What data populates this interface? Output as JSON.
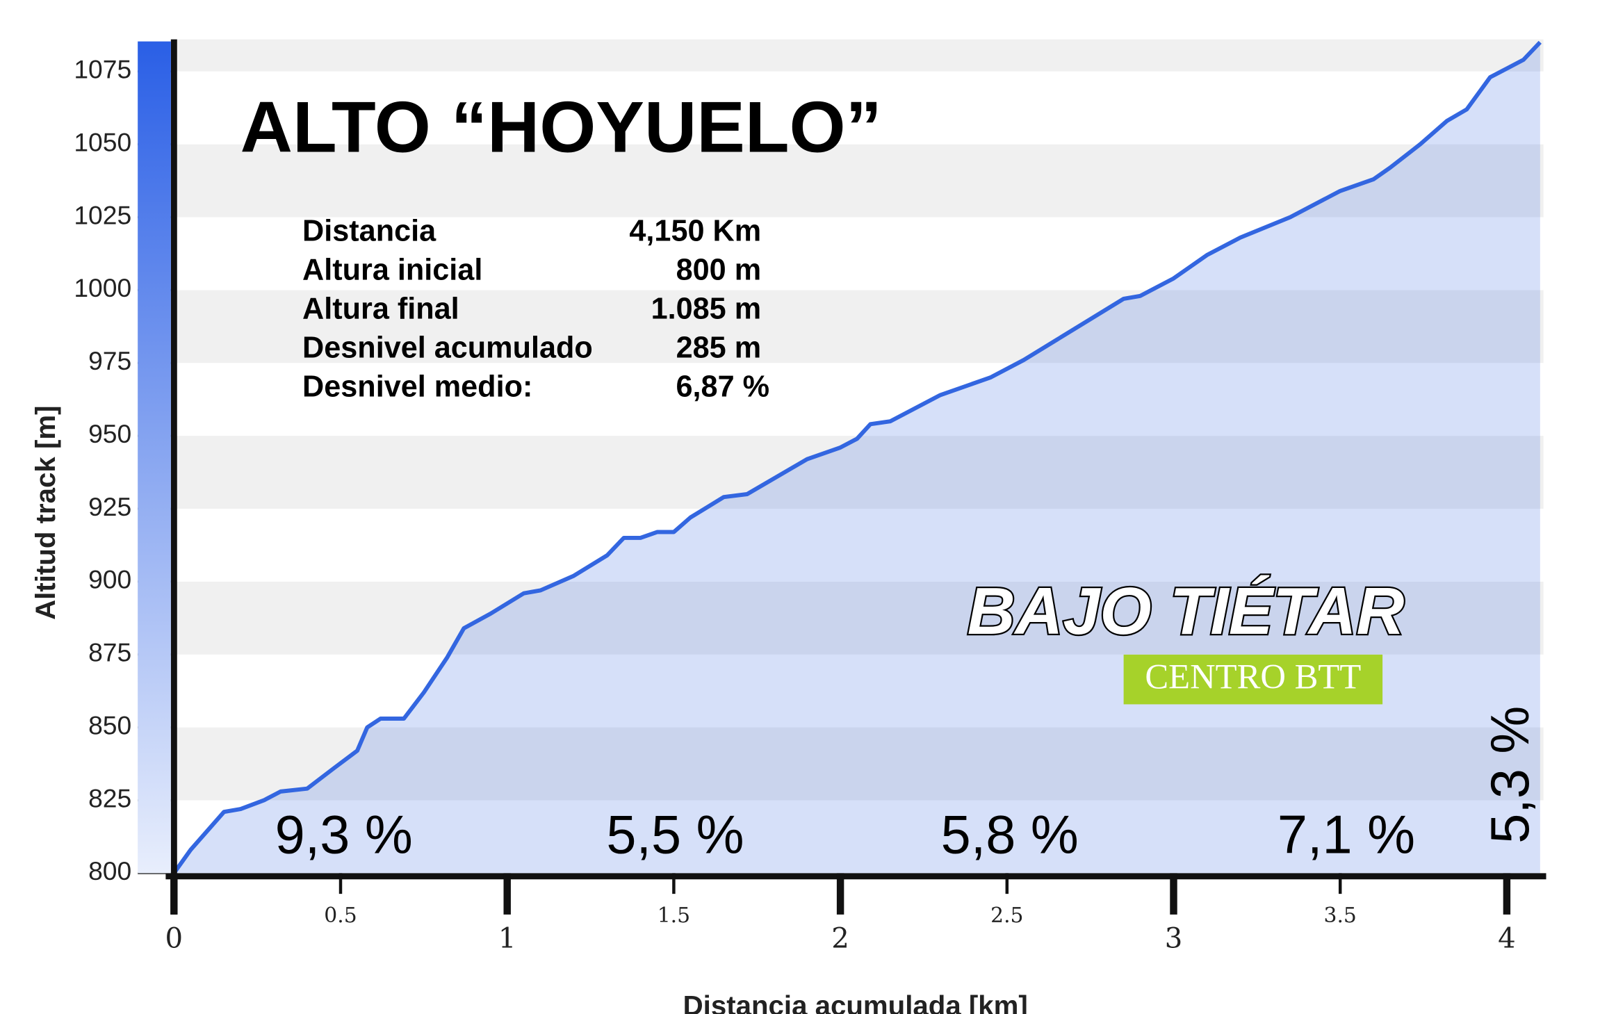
{
  "chart_data": {
    "type": "area",
    "title": "ALTO “HOYUELO”",
    "x_label": "Distancia acumulada [km]",
    "y_label": "Altitud track [m]",
    "x": [
      0,
      0.05,
      0.15,
      0.2,
      0.27,
      0.32,
      0.4,
      0.48,
      0.55,
      0.58,
      0.62,
      0.69,
      0.75,
      0.82,
      0.87,
      0.95,
      1.05,
      1.1,
      1.2,
      1.3,
      1.35,
      1.4,
      1.45,
      1.5,
      1.55,
      1.65,
      1.72,
      1.9,
      2.0,
      2.05,
      2.09,
      2.15,
      2.3,
      2.45,
      2.55,
      2.65,
      2.75,
      2.85,
      2.9,
      3.0,
      3.1,
      3.2,
      3.35,
      3.5,
      3.6,
      3.65,
      3.74,
      3.82,
      3.88,
      3.95,
      4.0,
      4.05,
      4.1
    ],
    "values": [
      800,
      808,
      821,
      822,
      825,
      828,
      829,
      836,
      842,
      850,
      853,
      853,
      862,
      874,
      884,
      889,
      896,
      897,
      902,
      909,
      915,
      915,
      917,
      917,
      922,
      929,
      930,
      942,
      946,
      949,
      954,
      955,
      964,
      970,
      976,
      983,
      990,
      997,
      998,
      1004,
      1012,
      1018,
      1025,
      1034,
      1038,
      1042,
      1050,
      1058,
      1062,
      1073,
      1076,
      1079,
      1085
    ],
    "color": "#3366e0",
    "xlim": [
      0,
      4.11
    ],
    "ylim": [
      800,
      1086
    ],
    "xticks": [
      0,
      0.5,
      1,
      1.5,
      2,
      2.5,
      3,
      3.5,
      4
    ],
    "yticks": [
      800,
      825,
      850,
      875,
      900,
      925,
      950,
      975,
      1000,
      1025,
      1050,
      1075
    ],
    "grid": true,
    "stats": [
      {
        "label": "Distancia",
        "value": "4,150 Km"
      },
      {
        "label": "Altura inicial",
        "value": "800 m"
      },
      {
        "label": "Altura final",
        "value": "1.085 m"
      },
      {
        "label": "Desnivel acumulado",
        "value": "285 m"
      },
      {
        "label": "Desnivel medio:",
        "value": "6,87 %"
      }
    ],
    "segment_labels": [
      "9,3 %",
      "5,5 %",
      "5,8 %",
      "7,1 %",
      "5,3 %"
    ],
    "logo": {
      "name": "BAJO TIÉTAR",
      "subtitle": "CENTRO BTT"
    }
  }
}
